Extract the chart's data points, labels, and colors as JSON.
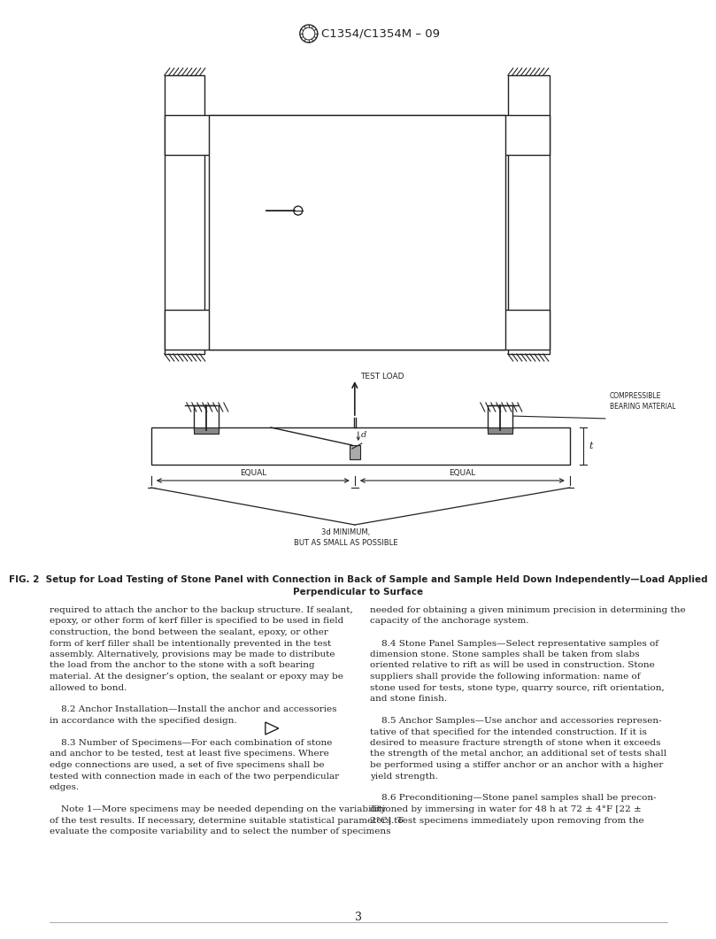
{
  "page_width": 7.78,
  "page_height": 10.41,
  "bg_color": "#ffffff",
  "header_text": "C1354/C1354M – 09",
  "fig2_caption_bold": "FIG. 2  Setup for Load Testing of Stone Panel with Connection in Back of Sample and Sample Held Down Independently—Load Applied\nPerpendicular to Surface",
  "page_number": "3",
  "body_text_left": [
    "required to attach the anchor to the backup structure. If sealant,",
    "epoxy, or other form of kerf filler is specified to be used in field",
    "construction, the bond between the sealant, epoxy, or other",
    "form of kerf filler shall be intentionally prevented in the test",
    "assembly. Alternatively, provisions may be made to distribute",
    "the load from the anchor to the stone with a soft bearing",
    "material. At the designer’s option, the sealant or epoxy may be",
    "allowed to bond.",
    "",
    "    8.2 Anchor Installation—Install the anchor and accessories",
    "in accordance with the specified design.",
    "",
    "    8.3 Number of Specimens—For each combination of stone",
    "and anchor to be tested, test at least five specimens. Where",
    "edge connections are used, a set of five specimens shall be",
    "tested with connection made in each of the two perpendicular",
    "edges.",
    "",
    "    Note 1—More specimens may be needed depending on the variability",
    "of the test results. If necessary, determine suitable statistical parameters to",
    "evaluate the composite variability and to select the number of specimens"
  ],
  "body_text_right": [
    "needed for obtaining a given minimum precision in determining the",
    "capacity of the anchorage system.",
    "",
    "    8.4 Stone Panel Samples—Select representative samples of",
    "dimension stone. Stone samples shall be taken from slabs",
    "oriented relative to rift as will be used in construction. Stone",
    "suppliers shall provide the following information: name of",
    "stone used for tests, stone type, quarry source, rift orientation,",
    "and stone finish.",
    "",
    "    8.5 Anchor Samples—Use anchor and accessories represen-",
    "tative of that specified for the intended construction. If it is",
    "desired to measure fracture strength of stone when it exceeds",
    "the strength of the metal anchor, an additional set of tests shall",
    "be performed using a stiffer anchor or an anchor with a higher",
    "yield strength.",
    "",
    "    8.6 Preconditioning—Stone panel samples shall be precon-",
    "ditioned by immersing in water for 48 h at 72 ± 4°F [22 ±",
    "2°C]. Test specimens immediately upon removing from the"
  ]
}
